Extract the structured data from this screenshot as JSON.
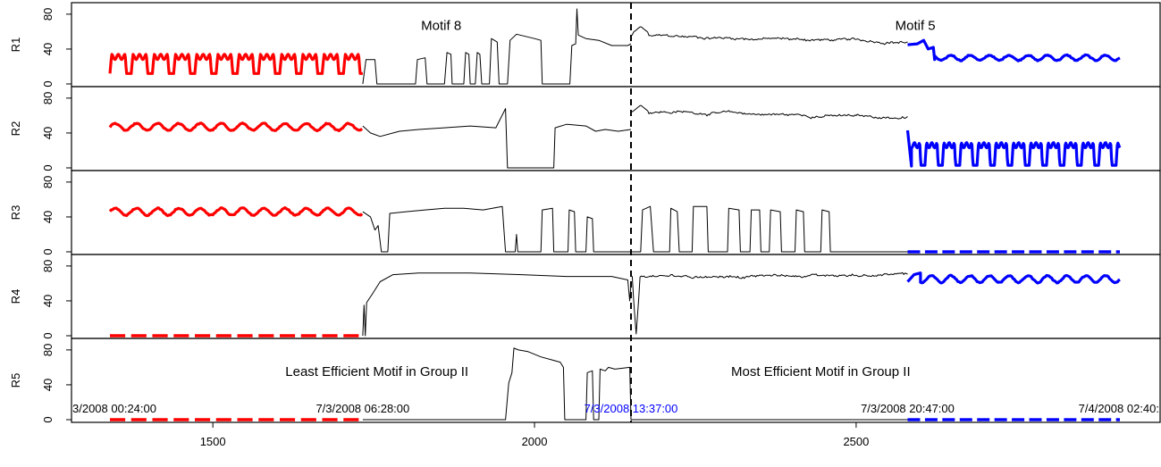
{
  "chart_data": {
    "type": "line",
    "x_range": [
      1340,
      2910
    ],
    "x_ticks": [
      1500,
      2000,
      2500
    ],
    "divider_x": 2150,
    "timestamps": [
      {
        "x": 1340,
        "text": "3/2008 00:24:00",
        "color": "#000000"
      },
      {
        "x": 1733,
        "text": "7/3/2008 06:28:00",
        "color": "#000000"
      },
      {
        "x": 2150,
        "text": "7/3/2008 13:37:00",
        "color": "#0000ff"
      },
      {
        "x": 2580,
        "text": "7/3/2008 20:47:00",
        "color": "#000000"
      },
      {
        "x": 2910,
        "text": "7/4/2008 02:40:",
        "color": "#000000"
      }
    ],
    "panels": [
      {
        "name": "R1",
        "ylim": [
          0,
          85
        ],
        "yticks": [
          0,
          40,
          80
        ],
        "annotations": [
          {
            "text": "Motif 8",
            "x": 1855,
            "y": 62
          },
          {
            "text": "Motif 5",
            "x": 2592,
            "y": 62
          }
        ],
        "segments": [
          {
            "role": "motif-a",
            "kind": "square",
            "x": [
              1340,
              1733
            ],
            "low": 12,
            "high": 33,
            "period": 33,
            "duty": 0.72
          },
          {
            "role": "context",
            "kind": "steps",
            "points": [
              [
                1733,
                0
              ],
              [
                1738,
                28
              ],
              [
                1752,
                28
              ],
              [
                1755,
                0
              ],
              [
                1815,
                0
              ],
              [
                1818,
                28
              ],
              [
                1830,
                30
              ],
              [
                1833,
                0
              ],
              [
                1860,
                0
              ],
              [
                1864,
                36
              ],
              [
                1870,
                34
              ],
              [
                1872,
                0
              ],
              [
                1890,
                0
              ],
              [
                1893,
                36
              ],
              [
                1898,
                34
              ],
              [
                1900,
                0
              ],
              [
                1908,
                0
              ],
              [
                1911,
                36
              ],
              [
                1915,
                34
              ],
              [
                1918,
                0
              ],
              [
                1930,
                0
              ],
              [
                1933,
                52
              ],
              [
                1942,
                48
              ],
              [
                1945,
                0
              ],
              [
                1958,
                0
              ],
              [
                1962,
                50
              ],
              [
                1972,
                57
              ],
              [
                2000,
                52
              ],
              [
                2010,
                50
              ],
              [
                2012,
                0
              ],
              [
                2055,
                0
              ],
              [
                2058,
                44
              ],
              [
                2064,
                46
              ],
              [
                2066,
                86
              ],
              [
                2068,
                56
              ],
              [
                2080,
                52
              ],
              [
                2100,
                50
              ],
              [
                2120,
                44
              ],
              [
                2145,
                44
              ],
              [
                2150,
                46
              ]
            ]
          },
          {
            "role": "context",
            "kind": "walk",
            "x": [
              2150,
              2580
            ],
            "start": 55,
            "end": 48,
            "amp": 3,
            "bump": [
              2165,
              66
            ]
          },
          {
            "role": "motif-b",
            "kind": "wave",
            "x": [
              2580,
              2910
            ],
            "mid": 30,
            "amp": 3,
            "period": 30,
            "head": [
              [
                2580,
                45
              ],
              [
                2595,
                46
              ],
              [
                2605,
                50
              ],
              [
                2612,
                40
              ],
              [
                2620,
                42
              ],
              [
                2622,
                28
              ]
            ]
          }
        ]
      },
      {
        "name": "R2",
        "ylim": [
          0,
          85
        ],
        "yticks": [
          0,
          40,
          80
        ],
        "annotations": [],
        "segments": [
          {
            "role": "motif-a",
            "kind": "wave",
            "x": [
              1340,
              1733
            ],
            "mid": 47,
            "amp": 4,
            "period": 33
          },
          {
            "role": "context",
            "kind": "steps",
            "points": [
              [
                1733,
                48
              ],
              [
                1745,
                40
              ],
              [
                1760,
                36
              ],
              [
                1790,
                42
              ],
              [
                1820,
                44
              ],
              [
                1860,
                46
              ],
              [
                1900,
                48
              ],
              [
                1940,
                46
              ],
              [
                1955,
                68
              ],
              [
                1958,
                0
              ],
              [
                2030,
                0
              ],
              [
                2032,
                46
              ],
              [
                2050,
                50
              ],
              [
                2080,
                48
              ],
              [
                2095,
                42
              ],
              [
                2110,
                44
              ],
              [
                2130,
                42
              ],
              [
                2150,
                44
              ]
            ]
          },
          {
            "role": "context",
            "kind": "walk",
            "x": [
              2150,
              2580
            ],
            "start": 65,
            "end": 57,
            "amp": 3,
            "bump": [
              2165,
              72
            ]
          },
          {
            "role": "motif-b",
            "kind": "square",
            "x": [
              2580,
              2910
            ],
            "low": 3,
            "high": 28,
            "period": 27,
            "duty": 0.7,
            "head": [
              [
                2580,
                43
              ],
              [
                2586,
                2
              ]
            ]
          }
        ]
      },
      {
        "name": "R3",
        "ylim": [
          0,
          85
        ],
        "yticks": [
          0,
          40,
          80
        ],
        "annotations": [],
        "segments": [
          {
            "role": "motif-a",
            "kind": "wave",
            "x": [
              1340,
              1733
            ],
            "mid": 46,
            "amp": 4,
            "period": 33
          },
          {
            "role": "context",
            "kind": "steps",
            "points": [
              [
                1733,
                46
              ],
              [
                1745,
                40
              ],
              [
                1752,
                25
              ],
              [
                1757,
                30
              ],
              [
                1762,
                0
              ],
              [
                1772,
                0
              ],
              [
                1775,
                44
              ],
              [
                1800,
                46
              ],
              [
                1830,
                48
              ],
              [
                1860,
                50
              ],
              [
                1890,
                50
              ],
              [
                1920,
                48
              ],
              [
                1950,
                52
              ],
              [
                1955,
                0
              ],
              [
                1970,
                0
              ],
              [
                1972,
                20
              ],
              [
                1974,
                0
              ],
              [
                2010,
                0
              ],
              [
                2012,
                48
              ],
              [
                2028,
                50
              ],
              [
                2030,
                0
              ],
              [
                2052,
                0
              ],
              [
                2054,
                48
              ],
              [
                2062,
                46
              ],
              [
                2064,
                0
              ],
              [
                2080,
                0
              ],
              [
                2082,
                40
              ],
              [
                2090,
                38
              ],
              [
                2092,
                0
              ],
              [
                2150,
                0
              ]
            ]
          },
          {
            "role": "context",
            "kind": "steps",
            "points": [
              [
                2150,
                0
              ],
              [
                2165,
                0
              ],
              [
                2168,
                48
              ],
              [
                2180,
                52
              ],
              [
                2185,
                0
              ],
              [
                2210,
                0
              ],
              [
                2212,
                50
              ],
              [
                2222,
                46
              ],
              [
                2225,
                0
              ],
              [
                2245,
                0
              ],
              [
                2247,
                52
              ],
              [
                2268,
                52
              ],
              [
                2270,
                0
              ],
              [
                2300,
                0
              ],
              [
                2302,
                50
              ],
              [
                2318,
                48
              ],
              [
                2320,
                0
              ],
              [
                2335,
                0
              ],
              [
                2337,
                48
              ],
              [
                2350,
                48
              ],
              [
                2352,
                0
              ],
              [
                2365,
                0
              ],
              [
                2367,
                48
              ],
              [
                2382,
                46
              ],
              [
                2384,
                0
              ],
              [
                2405,
                0
              ],
              [
                2407,
                48
              ],
              [
                2418,
                46
              ],
              [
                2420,
                0
              ],
              [
                2445,
                0
              ],
              [
                2447,
                48
              ],
              [
                2458,
                46
              ],
              [
                2460,
                0
              ],
              [
                2580,
                0
              ]
            ]
          },
          {
            "role": "motif-b",
            "kind": "dash",
            "x": [
              2580,
              2910
            ],
            "y": 0,
            "period": 27
          }
        ]
      },
      {
        "name": "R4",
        "ylim": [
          0,
          85
        ],
        "yticks": [
          0,
          40,
          80
        ],
        "annotations": [],
        "segments": [
          {
            "role": "motif-a",
            "kind": "dash",
            "x": [
              1340,
              1733
            ],
            "y": 0,
            "period": 33
          },
          {
            "role": "context",
            "kind": "steps",
            "points": [
              [
                1733,
                0
              ],
              [
                1735,
                35
              ],
              [
                1737,
                0
              ],
              [
                1739,
                38
              ],
              [
                1748,
                48
              ],
              [
                1760,
                62
              ],
              [
                1780,
                70
              ],
              [
                1820,
                72
              ],
              [
                1900,
                72
              ],
              [
                1980,
                70
              ],
              [
                2050,
                68
              ],
              [
                2120,
                68
              ],
              [
                2145,
                64
              ],
              [
                2148,
                40
              ],
              [
                2150,
                60
              ]
            ]
          },
          {
            "role": "context",
            "kind": "walk",
            "x": [
              2150,
              2580
            ],
            "start": 68,
            "end": 70,
            "amp": 3,
            "dip": [
              2158,
              2
            ]
          },
          {
            "role": "motif-b",
            "kind": "wave",
            "x": [
              2580,
              2910
            ],
            "mid": 65,
            "amp": 4,
            "period": 30,
            "head": [
              [
                2580,
                62
              ],
              [
                2590,
                70
              ],
              [
                2600,
                72
              ]
            ]
          }
        ]
      },
      {
        "name": "R5",
        "ylim": [
          0,
          85
        ],
        "yticks": [
          0,
          40,
          80
        ],
        "annotations": [
          {
            "text": "Least Efficient Motif in Group II",
            "x": 1755,
            "y": 50
          },
          {
            "text": "Most Efficient Motif in Group II",
            "x": 2445,
            "y": 50
          }
        ],
        "segments": [
          {
            "role": "motif-a",
            "kind": "dash",
            "x": [
              1340,
              1733
            ],
            "y": 0,
            "period": 33
          },
          {
            "role": "context",
            "kind": "steps",
            "points": [
              [
                1733,
                0
              ],
              [
                1955,
                0
              ],
              [
                1960,
                42
              ],
              [
                1965,
                54
              ],
              [
                1968,
                82
              ],
              [
                1975,
                80
              ],
              [
                1990,
                78
              ],
              [
                2010,
                72
              ],
              [
                2030,
                68
              ],
              [
                2040,
                66
              ],
              [
                2045,
                60
              ],
              [
                2047,
                0
              ],
              [
                2080,
                0
              ],
              [
                2082,
                54
              ],
              [
                2090,
                56
              ],
              [
                2092,
                0
              ],
              [
                2100,
                0
              ],
              [
                2102,
                58
              ],
              [
                2110,
                56
              ],
              [
                2115,
                60
              ],
              [
                2125,
                58
              ],
              [
                2148,
                60
              ],
              [
                2150,
                0
              ]
            ]
          },
          {
            "role": "context",
            "kind": "steps",
            "points": [
              [
                2150,
                0
              ],
              [
                2580,
                0
              ]
            ]
          },
          {
            "role": "motif-b",
            "kind": "dash",
            "x": [
              2580,
              2910
            ],
            "y": 0,
            "period": 27
          }
        ]
      }
    ],
    "colors": {
      "motif-a": "#ff0000",
      "motif-b": "#0000ff",
      "context": "#000000",
      "divider": "#000000"
    }
  }
}
